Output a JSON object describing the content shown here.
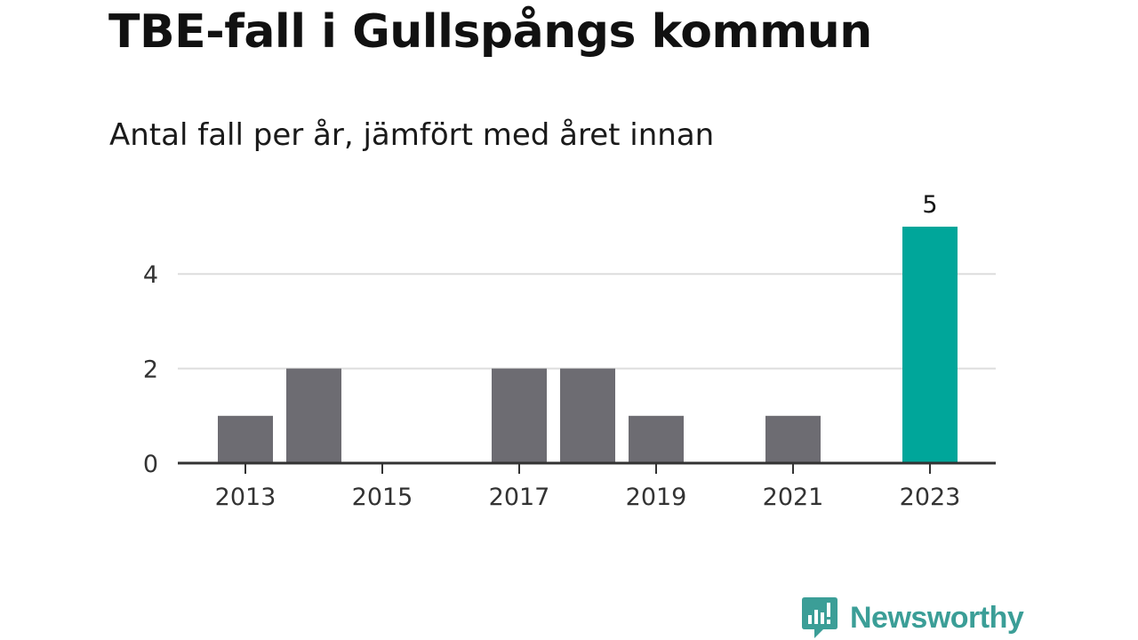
{
  "chart_data": {
    "type": "bar",
    "title": "TBE-fall i Gullspångs kommun",
    "subtitle": "Antal fall per år, jämfört med året innan",
    "xlabel": "",
    "ylabel": "",
    "categories": [
      "2013",
      "2014",
      "2015",
      "2016",
      "2017",
      "2018",
      "2019",
      "2020",
      "2021",
      "2022",
      "2023"
    ],
    "values": [
      1,
      2,
      0,
      0,
      2,
      2,
      1,
      0,
      1,
      0,
      5
    ],
    "x_tick_labels": [
      "2013",
      "2015",
      "2017",
      "2019",
      "2021",
      "2023"
    ],
    "y_ticks": [
      0,
      2,
      4
    ],
    "ylim": [
      0,
      5
    ],
    "grid": true,
    "legend": "none",
    "highlighted_category": "2023",
    "data_labels": [
      {
        "category": "2023",
        "text": "5"
      }
    ]
  },
  "colors": {
    "bar": "#6d6c72",
    "highlight": "#00a69a",
    "grid": "#dddddd",
    "axis": "#333333",
    "brand": "#3b9e97"
  },
  "brand": {
    "name": "Newsworthy",
    "icon": "newsworthy-logo-icon"
  }
}
